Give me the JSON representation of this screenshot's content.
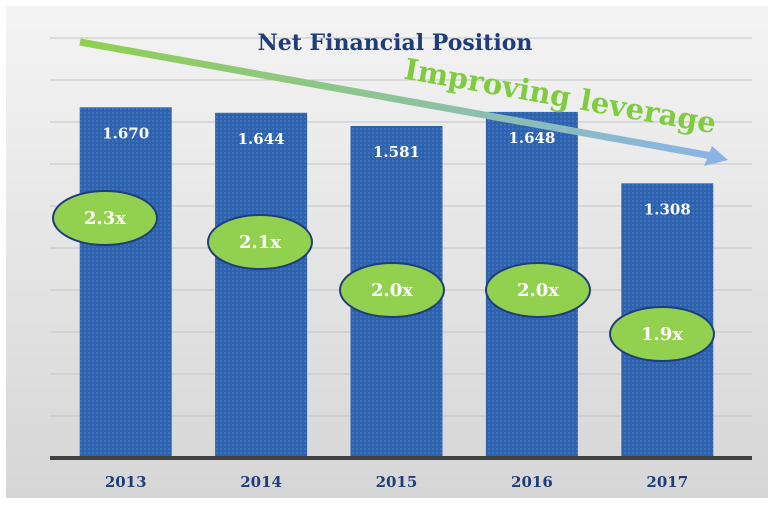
{
  "chart_data": {
    "type": "bar",
    "title": "Net Financial Position",
    "categories": [
      "2013",
      "2014",
      "2015",
      "2016",
      "2017"
    ],
    "values": [
      1670,
      1644,
      1581,
      1648,
      1308
    ],
    "value_labels": [
      "1.670",
      "1.644",
      "1.581",
      "1.648",
      "1.308"
    ],
    "multiples": [
      "2.3x",
      "2.1x",
      "2.0x",
      "2.0x",
      "1.9x"
    ],
    "annotation": "Improving leverage",
    "color": "#2f62ad",
    "ylim": [
      0,
      2000
    ],
    "yticks": [
      0,
      200,
      400,
      600,
      800,
      1000,
      1200,
      1400,
      1600,
      1800,
      2000
    ],
    "grid": true
  }
}
